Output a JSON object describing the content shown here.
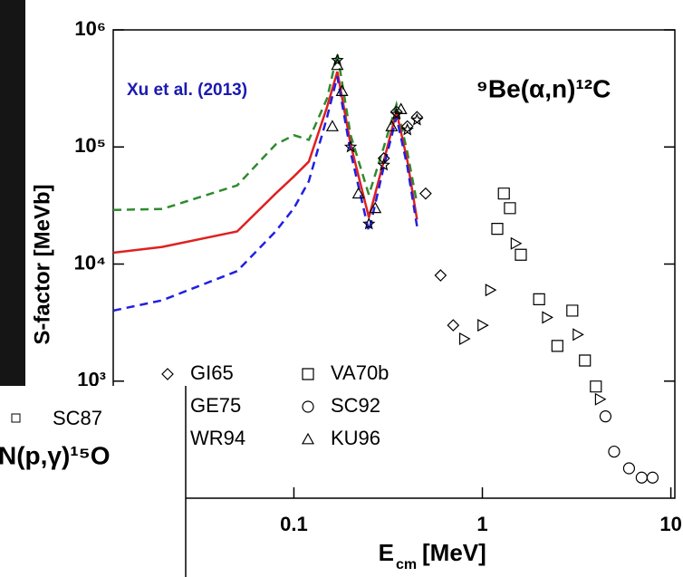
{
  "chart_data": {
    "type": "line",
    "title": "⁹Be(α,n)¹²C",
    "annotation": "Xu et al. (2013)",
    "xlabel": "E",
    "xlabel_sub": "cm",
    "xlabel_unit": "[MeV]",
    "ylabel": "S-factor [MeVb]",
    "log_x": true,
    "log_y": true,
    "xlim": [
      0.011,
      10.5
    ],
    "ylim": [
      100,
      1000000
    ],
    "xticks": [
      0.1,
      1,
      10
    ],
    "yticks": [
      {
        "value": 1000,
        "label": "10³"
      },
      {
        "value": 10000,
        "label": "10⁴"
      },
      {
        "value": 100000,
        "label": "10⁵"
      },
      {
        "value": 1000000,
        "label": "10⁶"
      }
    ],
    "curves": [
      {
        "color": "#2e8b2e",
        "dash": true,
        "x": [
          0.011,
          0.02,
          0.05,
          0.08,
          0.1,
          0.12,
          0.15,
          0.17,
          0.2,
          0.25,
          0.3,
          0.35,
          0.4,
          0.45
        ],
        "values": [
          29000,
          29500,
          47000,
          105000,
          126000,
          115000,
          260000,
          630000,
          126000,
          39000,
          100000,
          230000,
          90000,
          33000
        ]
      },
      {
        "color": "#e02020",
        "dash": false,
        "x": [
          0.011,
          0.02,
          0.05,
          0.08,
          0.1,
          0.12,
          0.15,
          0.17,
          0.2,
          0.25,
          0.3,
          0.35,
          0.4,
          0.45
        ],
        "values": [
          12500,
          14000,
          19000,
          40000,
          56000,
          75000,
          220000,
          440000,
          105000,
          25000,
          76000,
          200000,
          76000,
          24000
        ]
      },
      {
        "color": "#2020e0",
        "dash": true,
        "x": [
          0.011,
          0.02,
          0.05,
          0.08,
          0.1,
          0.12,
          0.15,
          0.17,
          0.2,
          0.25,
          0.3,
          0.35,
          0.4,
          0.45
        ],
        "values": [
          4000,
          4900,
          8700,
          19000,
          30000,
          51000,
          180000,
          400000,
          90000,
          19000,
          68000,
          180000,
          68000,
          21000
        ]
      }
    ],
    "series": [
      {
        "name": "GI65",
        "marker": "diamond",
        "color": "#000000",
        "x": [
          0.3,
          0.35,
          0.4,
          0.45,
          0.5,
          0.6,
          0.7
        ],
        "values": [
          80000,
          200000,
          150000,
          180000,
          40000,
          8000,
          3000
        ]
      },
      {
        "name": "VA70b",
        "marker": "square",
        "color": "#000000",
        "x": [
          1.2,
          1.3,
          1.4,
          1.6,
          2,
          2.5,
          3,
          3.5,
          4
        ],
        "values": [
          20000,
          40000,
          30000,
          12000,
          5000,
          2000,
          4000,
          1500,
          900
        ]
      },
      {
        "name": "GE75",
        "marker": "star",
        "color": "#000000",
        "x": [
          0.17,
          0.2,
          0.25,
          0.3,
          0.35,
          0.4,
          0.45
        ],
        "values": [
          550000,
          100000,
          22000,
          70000,
          190000,
          140000,
          170000
        ]
      },
      {
        "name": "SC92",
        "marker": "circle",
        "color": "#000000",
        "x": [
          4.5,
          5,
          6,
          7,
          8
        ],
        "values": [
          500,
          250,
          180,
          150,
          150
        ]
      },
      {
        "name": "WR94",
        "marker": "rtriangle",
        "color": "#000000",
        "x": [
          0.8,
          1,
          1.1,
          1.5,
          2.2,
          3.2,
          4.2
        ],
        "values": [
          2300,
          3000,
          6000,
          15000,
          3500,
          2500,
          700
        ]
      },
      {
        "name": "KU96",
        "marker": "triangle",
        "color": "#000000",
        "x": [
          0.16,
          0.17,
          0.18,
          0.22,
          0.27,
          0.33,
          0.37
        ],
        "values": [
          150000,
          500000,
          300000,
          40000,
          30000,
          150000,
          210000
        ]
      }
    ]
  },
  "inset": {
    "legend": "SC87",
    "title": "N(p,γ)¹⁵O"
  }
}
